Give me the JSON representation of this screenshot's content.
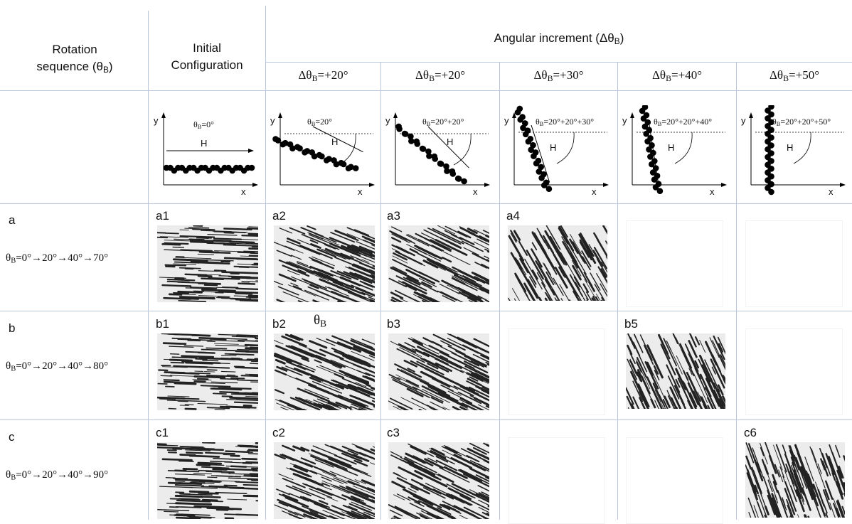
{
  "header": {
    "col1_line1": "Rotation",
    "col1_line2": "sequence (θ",
    "col1_sub": "B",
    "col1_end": ")",
    "col2_line1": "Initial",
    "col2_line2": "Configuration",
    "angular_title": "Angular increment (Δθ",
    "angular_sub": "B",
    "angular_end": ")",
    "increments": [
      {
        "pre": "Δθ",
        "sub": "B",
        "post": "=+20°"
      },
      {
        "pre": "Δθ",
        "sub": "B",
        "post": "=+20°"
      },
      {
        "pre": "Δθ",
        "sub": "B",
        "post": "=+30°"
      },
      {
        "pre": "Δθ",
        "sub": "B",
        "post": "=+40°"
      },
      {
        "pre": "Δθ",
        "sub": "B",
        "post": "=+50°"
      }
    ]
  },
  "diagrams": [
    {
      "theta_pre": "θ",
      "theta_sub": "B",
      "theta_post": "=0°",
      "field": "H",
      "x": "x",
      "y": "y",
      "tilt_deg": 0
    },
    {
      "theta_pre": "θ",
      "theta_sub": "B",
      "theta_post": "=20°",
      "field": "H",
      "x": "x",
      "y": "y",
      "tilt_deg": 20
    },
    {
      "theta_pre": "θ",
      "theta_sub": "B",
      "theta_post": "=20°+20°",
      "field": "H",
      "x": "x",
      "y": "y",
      "tilt_deg": 40
    },
    {
      "theta_pre": "θ",
      "theta_sub": "B",
      "theta_post": "=20°+20°+30°",
      "field": "H",
      "x": "x",
      "y": "y",
      "tilt_deg": 70
    },
    {
      "theta_pre": "θ",
      "theta_sub": "B",
      "theta_post": "=20°+20°+40°",
      "field": "H",
      "x": "x",
      "y": "y",
      "tilt_deg": 80
    },
    {
      "theta_pre": "θ",
      "theta_sub": "B",
      "theta_post": "=20°+20°+50°",
      "field": "H",
      "x": "x",
      "y": "y",
      "tilt_deg": 90
    }
  ],
  "rows": [
    {
      "label": "a",
      "seq_pre": "θ",
      "seq_sub": "B",
      "seq_post": "=0°→20°→40°→70°",
      "panels": [
        "a1",
        "a2",
        "a3",
        "a4",
        "",
        ""
      ]
    },
    {
      "label": "b",
      "seq_pre": "θ",
      "seq_sub": "B",
      "seq_post": "=0°→20°→40°→80°",
      "panels": [
        "b1",
        "b2",
        "b3",
        "",
        "b5",
        ""
      ]
    },
    {
      "label": "c",
      "seq_pre": "θ",
      "seq_sub": "B",
      "seq_post": "=0°→20°→40°→90°",
      "panels": [
        "c1",
        "c2",
        "c3",
        "",
        "",
        "c6"
      ]
    }
  ],
  "extra_label": {
    "pre": "θ",
    "sub": "B"
  }
}
